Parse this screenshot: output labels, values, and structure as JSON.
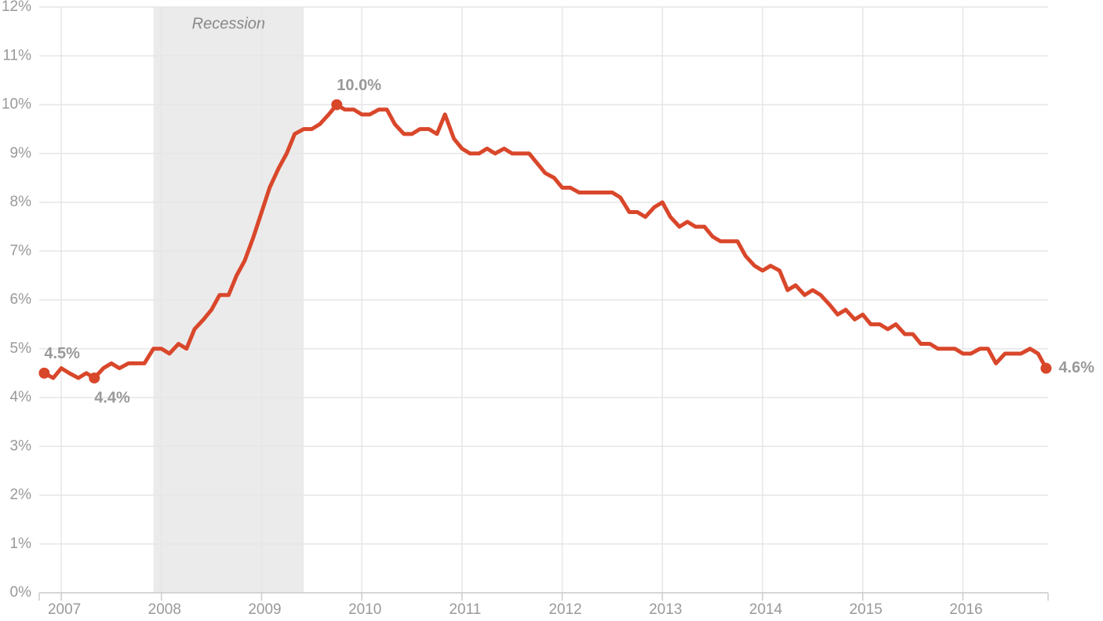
{
  "chart_data": {
    "type": "line",
    "x": [
      2006.83,
      2006.92,
      2007,
      2007.08,
      2007.17,
      2007.25,
      2007.33,
      2007.42,
      2007.5,
      2007.58,
      2007.67,
      2007.75,
      2007.83,
      2007.92,
      2008,
      2008.08,
      2008.17,
      2008.25,
      2008.33,
      2008.42,
      2008.5,
      2008.58,
      2008.67,
      2008.75,
      2008.83,
      2008.92,
      2009,
      2009.08,
      2009.17,
      2009.25,
      2009.33,
      2009.42,
      2009.5,
      2009.58,
      2009.67,
      2009.75,
      2009.83,
      2009.92,
      2010,
      2010.08,
      2010.17,
      2010.25,
      2010.33,
      2010.42,
      2010.5,
      2010.58,
      2010.67,
      2010.75,
      2010.83,
      2010.92,
      2011,
      2011.08,
      2011.17,
      2011.25,
      2011.33,
      2011.42,
      2011.5,
      2011.58,
      2011.67,
      2011.75,
      2011.83,
      2011.92,
      2012,
      2012.08,
      2012.17,
      2012.25,
      2012.33,
      2012.42,
      2012.5,
      2012.58,
      2012.67,
      2012.75,
      2012.83,
      2012.92,
      2013,
      2013.08,
      2013.17,
      2013.25,
      2013.33,
      2013.42,
      2013.5,
      2013.58,
      2013.67,
      2013.75,
      2013.83,
      2013.92,
      2014,
      2014.08,
      2014.17,
      2014.25,
      2014.33,
      2014.42,
      2014.5,
      2014.58,
      2014.67,
      2014.75,
      2014.83,
      2014.92,
      2015,
      2015.08,
      2015.17,
      2015.25,
      2015.33,
      2015.42,
      2015.5,
      2015.58,
      2015.67,
      2015.75,
      2015.83,
      2015.92,
      2016,
      2016.08,
      2016.17,
      2016.25,
      2016.33,
      2016.42,
      2016.5,
      2016.58,
      2016.67,
      2016.75,
      2016.83
    ],
    "values": [
      4.5,
      4.4,
      4.6,
      4.5,
      4.4,
      4.5,
      4.4,
      4.6,
      4.7,
      4.6,
      4.7,
      4.7,
      4.7,
      5.0,
      5.0,
      4.9,
      5.1,
      5.0,
      5.4,
      5.6,
      5.8,
      6.1,
      6.1,
      6.5,
      6.8,
      7.3,
      7.8,
      8.3,
      8.7,
      9.0,
      9.4,
      9.5,
      9.5,
      9.6,
      9.8,
      10.0,
      9.9,
      9.9,
      9.8,
      9.8,
      9.9,
      9.9,
      9.6,
      9.4,
      9.4,
      9.5,
      9.5,
      9.4,
      9.8,
      9.3,
      9.1,
      9.0,
      9.0,
      9.1,
      9.0,
      9.1,
      9.0,
      9.0,
      9.0,
      8.8,
      8.6,
      8.5,
      8.3,
      8.3,
      8.2,
      8.2,
      8.2,
      8.2,
      8.2,
      8.1,
      7.8,
      7.8,
      7.7,
      7.9,
      8.0,
      7.7,
      7.5,
      7.6,
      7.5,
      7.5,
      7.3,
      7.2,
      7.2,
      7.2,
      6.9,
      6.7,
      6.6,
      6.7,
      6.6,
      6.2,
      6.3,
      6.1,
      6.2,
      6.1,
      5.9,
      5.7,
      5.8,
      5.6,
      5.7,
      5.5,
      5.5,
      5.4,
      5.5,
      5.3,
      5.3,
      5.1,
      5.1,
      5.0,
      5.0,
      5.0,
      4.9,
      4.9,
      5.0,
      5.0,
      4.7,
      4.9,
      4.9,
      4.9,
      5.0,
      4.9,
      4.6
    ],
    "value_labels": [
      "4.5%",
      null,
      null,
      null,
      null,
      null,
      "4.4%",
      null,
      null,
      null,
      null,
      null,
      null,
      null,
      null,
      null,
      null,
      null,
      null,
      null,
      null,
      null,
      null,
      null,
      null,
      null,
      null,
      null,
      null,
      null,
      null,
      null,
      null,
      null,
      null,
      "10.0%",
      null,
      null,
      null,
      null,
      null,
      null,
      null,
      null,
      null,
      null,
      null,
      null,
      null,
      null,
      null,
      null,
      null,
      null,
      null,
      null,
      null,
      null,
      null,
      null,
      null,
      null,
      null,
      null,
      null,
      null,
      null,
      null,
      null,
      null,
      null,
      null,
      null,
      null,
      null,
      null,
      null,
      null,
      null,
      null,
      null,
      null,
      null,
      null,
      null,
      null,
      null,
      null,
      null,
      null,
      null,
      null,
      null,
      null,
      null,
      null,
      null,
      null,
      null,
      null,
      null,
      null,
      null,
      null,
      null,
      null,
      null,
      null,
      null,
      null,
      null,
      null,
      null,
      null,
      null,
      null,
      null,
      null,
      null,
      null,
      "4.6%"
    ],
    "color": "#d9472b",
    "recession": {
      "label": "Recession",
      "start": 2007.92,
      "end": 2009.42
    },
    "xlim": [
      2006.78,
      2016.85
    ],
    "xticks": [
      2007,
      2008,
      2009,
      2010,
      2011,
      2012,
      2013,
      2014,
      2015,
      2016
    ],
    "ylim": [
      0,
      12
    ],
    "yticks": [
      {
        "value": 0,
        "label": "0%"
      },
      {
        "value": 1,
        "label": "1%"
      },
      {
        "value": 2,
        "label": "2%"
      },
      {
        "value": 3,
        "label": "3%"
      },
      {
        "value": 4,
        "label": "4%"
      },
      {
        "value": 5,
        "label": "5%"
      },
      {
        "value": 6,
        "label": "6%"
      },
      {
        "value": 7,
        "label": "7%"
      },
      {
        "value": 8,
        "label": "8%"
      },
      {
        "value": 9,
        "label": "9%"
      },
      {
        "value": 10,
        "label": "10%"
      },
      {
        "value": 11,
        "label": "11%"
      },
      {
        "value": 12,
        "label": "12%"
      }
    ],
    "grid": true
  }
}
